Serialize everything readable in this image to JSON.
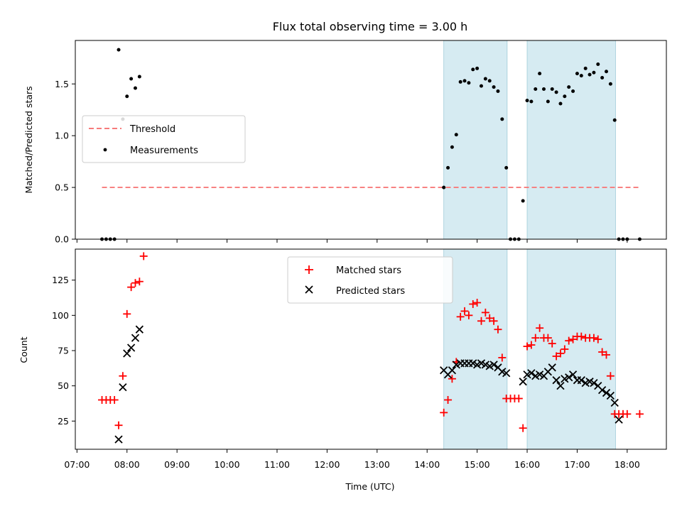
{
  "chart_data": [
    {
      "type": "scatter",
      "title": "Flux total observing time = 3.00 h",
      "xlabel": "",
      "ylabel": "Matched/Predicted stars",
      "ylim": [
        0,
        1.92
      ],
      "yticks": [
        "0.0",
        "0.5",
        "1.0",
        "1.5"
      ],
      "legend_position": "center-left",
      "shaded_intervals": [
        [
          "14:20",
          "15:36"
        ],
        [
          "16:00",
          "17:46"
        ]
      ],
      "series": [
        {
          "name": "Threshold",
          "style": "dashed-line",
          "color": "#f77b7b",
          "x": [
            "07:30",
            "18:15"
          ],
          "y": [
            0.5,
            0.5
          ]
        },
        {
          "name": "Measurements",
          "style": "dot",
          "color": "#000000",
          "points": [
            [
              "07:30",
              0
            ],
            [
              "07:35",
              0
            ],
            [
              "07:40",
              0
            ],
            [
              "07:45",
              0
            ],
            [
              "07:50",
              1.83
            ],
            [
              "07:55",
              1.16
            ],
            [
              "08:00",
              1.38
            ],
            [
              "08:05",
              1.55
            ],
            [
              "08:10",
              1.46
            ],
            [
              "08:15",
              1.57
            ],
            [
              "14:20",
              0.5
            ],
            [
              "14:25",
              0.69
            ],
            [
              "14:30",
              0.89
            ],
            [
              "14:35",
              1.01
            ],
            [
              "14:40",
              1.52
            ],
            [
              "14:45",
              1.53
            ],
            [
              "14:50",
              1.51
            ],
            [
              "14:55",
              1.64
            ],
            [
              "15:00",
              1.65
            ],
            [
              "15:05",
              1.48
            ],
            [
              "15:10",
              1.55
            ],
            [
              "15:15",
              1.53
            ],
            [
              "15:20",
              1.47
            ],
            [
              "15:25",
              1.43
            ],
            [
              "15:30",
              1.16
            ],
            [
              "15:35",
              0.69
            ],
            [
              "15:40",
              0
            ],
            [
              "15:45",
              0
            ],
            [
              "15:50",
              0
            ],
            [
              "15:55",
              0.37
            ],
            [
              "16:00",
              1.34
            ],
            [
              "16:05",
              1.33
            ],
            [
              "16:10",
              1.45
            ],
            [
              "16:15",
              1.6
            ],
            [
              "16:20",
              1.45
            ],
            [
              "16:25",
              1.33
            ],
            [
              "16:30",
              1.45
            ],
            [
              "16:35",
              1.42
            ],
            [
              "16:40",
              1.31
            ],
            [
              "16:45",
              1.38
            ],
            [
              "16:50",
              1.47
            ],
            [
              "16:55",
              1.43
            ],
            [
              "17:00",
              1.6
            ],
            [
              "17:05",
              1.58
            ],
            [
              "17:10",
              1.65
            ],
            [
              "17:15",
              1.59
            ],
            [
              "17:20",
              1.61
            ],
            [
              "17:25",
              1.69
            ],
            [
              "17:30",
              1.56
            ],
            [
              "17:35",
              1.62
            ],
            [
              "17:40",
              1.5
            ],
            [
              "17:45",
              1.15
            ],
            [
              "17:50",
              0
            ],
            [
              "17:55",
              0
            ],
            [
              "18:00",
              0
            ],
            [
              "18:15",
              0
            ]
          ]
        }
      ]
    },
    {
      "type": "scatter",
      "title": "",
      "xlabel": "Time (UTC)",
      "ylabel": "Count",
      "ylim": [
        5,
        147
      ],
      "xlim": [
        "06:58",
        "18:47"
      ],
      "yticks": [
        "25",
        "50",
        "75",
        "100",
        "125"
      ],
      "xticks": [
        "07:00",
        "08:00",
        "09:00",
        "10:00",
        "11:00",
        "12:00",
        "13:00",
        "14:00",
        "15:00",
        "16:00",
        "17:00",
        "18:00"
      ],
      "legend_position": "upper-center",
      "shaded_intervals": [
        [
          "14:20",
          "15:36"
        ],
        [
          "16:00",
          "17:46"
        ]
      ],
      "series": [
        {
          "name": "Matched stars",
          "style": "plus",
          "color": "#ff0000",
          "points": [
            [
              "07:30",
              40
            ],
            [
              "07:35",
              40
            ],
            [
              "07:40",
              40
            ],
            [
              "07:45",
              40
            ],
            [
              "07:50",
              22
            ],
            [
              "07:55",
              57
            ],
            [
              "08:00",
              101
            ],
            [
              "08:05",
              120
            ],
            [
              "08:10",
              123
            ],
            [
              "08:15",
              124
            ],
            [
              "08:20",
              142
            ],
            [
              "14:20",
              31
            ],
            [
              "14:25",
              40
            ],
            [
              "14:30",
              55
            ],
            [
              "14:35",
              67
            ],
            [
              "14:40",
              99
            ],
            [
              "14:45",
              103
            ],
            [
              "14:50",
              100
            ],
            [
              "14:55",
              108
            ],
            [
              "15:00",
              109
            ],
            [
              "15:05",
              96
            ],
            [
              "15:10",
              102
            ],
            [
              "15:15",
              98
            ],
            [
              "15:20",
              96
            ],
            [
              "15:25",
              90
            ],
            [
              "15:30",
              70
            ],
            [
              "15:35",
              41
            ],
            [
              "15:40",
              41
            ],
            [
              "15:45",
              41
            ],
            [
              "15:50",
              41
            ],
            [
              "15:55",
              20
            ],
            [
              "16:00",
              78
            ],
            [
              "16:05",
              79
            ],
            [
              "16:10",
              84
            ],
            [
              "16:15",
              91
            ],
            [
              "16:20",
              84
            ],
            [
              "16:25",
              84
            ],
            [
              "16:30",
              80
            ],
            [
              "16:35",
              71
            ],
            [
              "16:40",
              73
            ],
            [
              "16:45",
              76
            ],
            [
              "16:50",
              82
            ],
            [
              "16:55",
              83
            ],
            [
              "17:00",
              85
            ],
            [
              "17:05",
              85
            ],
            [
              "17:10",
              84
            ],
            [
              "17:15",
              84
            ],
            [
              "17:20",
              84
            ],
            [
              "17:25",
              83
            ],
            [
              "17:30",
              74
            ],
            [
              "17:35",
              72
            ],
            [
              "17:40",
              57
            ],
            [
              "17:45",
              30
            ],
            [
              "17:50",
              30
            ],
            [
              "17:55",
              30
            ],
            [
              "18:00",
              30
            ],
            [
              "18:15",
              30
            ]
          ]
        },
        {
          "name": "Predicted stars",
          "style": "x",
          "color": "#000000",
          "points": [
            [
              "07:50",
              12
            ],
            [
              "07:55",
              49
            ],
            [
              "08:00",
              73
            ],
            [
              "08:05",
              77
            ],
            [
              "08:10",
              84
            ],
            [
              "08:15",
              90
            ],
            [
              "14:20",
              61
            ],
            [
              "14:25",
              58
            ],
            [
              "14:30",
              61
            ],
            [
              "14:35",
              65
            ],
            [
              "14:40",
              66
            ],
            [
              "14:45",
              66
            ],
            [
              "14:50",
              66
            ],
            [
              "14:55",
              66
            ],
            [
              "15:00",
              65
            ],
            [
              "15:05",
              66
            ],
            [
              "15:10",
              65
            ],
            [
              "15:15",
              64
            ],
            [
              "15:20",
              65
            ],
            [
              "15:25",
              63
            ],
            [
              "15:30",
              60
            ],
            [
              "15:35",
              59
            ],
            [
              "15:55",
              53
            ],
            [
              "16:00",
              58
            ],
            [
              "16:05",
              59
            ],
            [
              "16:10",
              57
            ],
            [
              "16:15",
              58
            ],
            [
              "16:20",
              57
            ],
            [
              "16:25",
              60
            ],
            [
              "16:30",
              63
            ],
            [
              "16:35",
              54
            ],
            [
              "16:40",
              50
            ],
            [
              "16:45",
              55
            ],
            [
              "16:50",
              56
            ],
            [
              "16:55",
              58
            ],
            [
              "17:00",
              54
            ],
            [
              "17:05",
              54
            ],
            [
              "17:10",
              52
            ],
            [
              "17:15",
              53
            ],
            [
              "17:20",
              52
            ],
            [
              "17:25",
              50
            ],
            [
              "17:30",
              47
            ],
            [
              "17:35",
              45
            ],
            [
              "17:40",
              43
            ],
            [
              "17:45",
              38
            ],
            [
              "17:50",
              26
            ]
          ]
        }
      ]
    }
  ]
}
